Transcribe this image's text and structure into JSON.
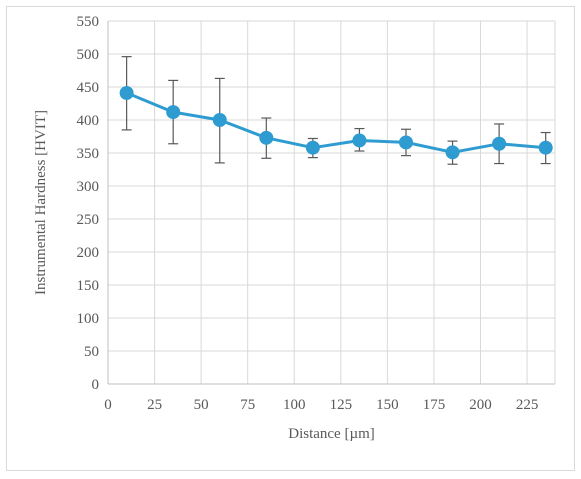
{
  "chart_data": {
    "type": "line",
    "title": "",
    "xlabel": "Distance [µm]",
    "ylabel": "Instrumental Hardness [HVIT]",
    "xlim": [
      0,
      240
    ],
    "ylim": [
      0,
      550
    ],
    "x_ticks": [
      0,
      25,
      50,
      75,
      100,
      125,
      150,
      175,
      200,
      225
    ],
    "y_ticks": [
      0,
      50,
      100,
      150,
      200,
      250,
      300,
      350,
      400,
      450,
      500,
      550
    ],
    "x_tick_labels": [
      "0",
      "25",
      "50",
      "75",
      "100",
      "125",
      "150",
      "175",
      "200",
      "225"
    ],
    "y_tick_labels": [
      "0",
      "50",
      "100",
      "150",
      "200",
      "250",
      "300",
      "350",
      "400",
      "450",
      "500",
      "550"
    ],
    "grid": true,
    "legend": "none",
    "series": [
      {
        "x": [
          10,
          35,
          60,
          85,
          110,
          135,
          160,
          185,
          210,
          235
        ],
        "y": [
          441,
          412,
          400,
          373,
          358,
          369,
          366,
          351,
          364,
          358
        ],
        "error_upper": [
          496,
          460,
          463,
          403,
          372,
          387,
          386,
          368,
          394,
          381
        ],
        "error_lower": [
          385,
          364,
          335,
          342,
          343,
          353,
          346,
          333,
          334,
          334
        ],
        "color": "#2e9bd1",
        "error_color": "#595959",
        "marker": "circle"
      }
    ],
    "colors": {
      "grid": "#d9d9d9",
      "axis": "#bfbfbf",
      "text": "#595959"
    }
  }
}
